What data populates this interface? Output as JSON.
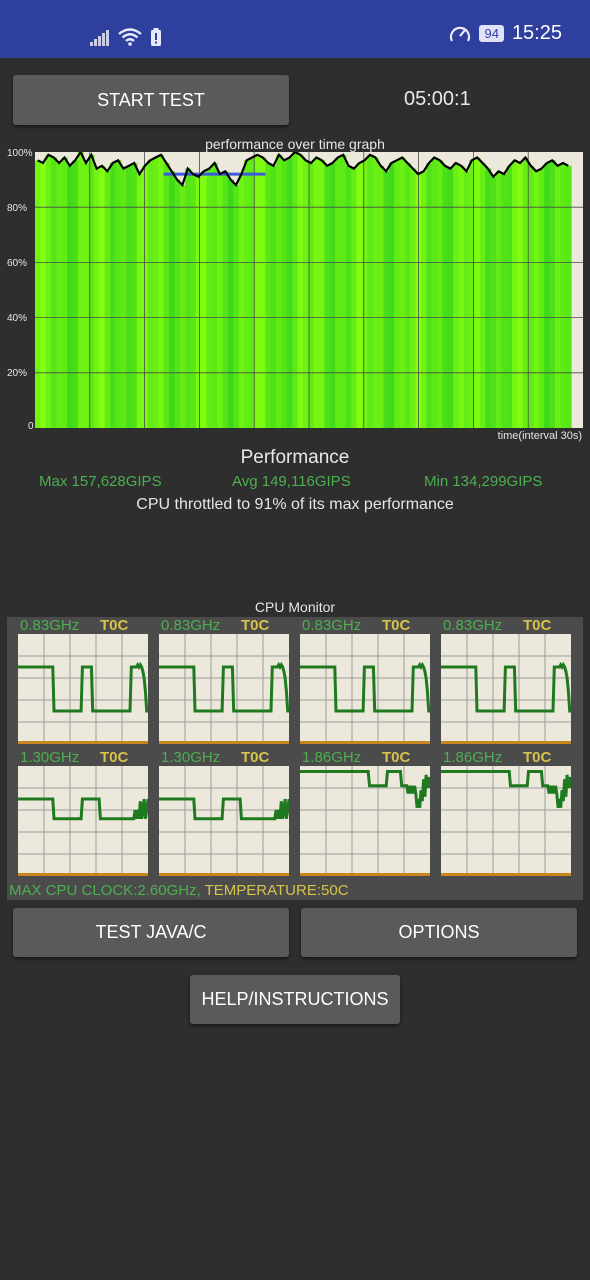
{
  "status_bar": {
    "time": "15:25",
    "battery": "94",
    "icons": [
      "signal-icon",
      "wifi-icon",
      "battery-saver-icon",
      "speedometer-icon"
    ]
  },
  "controls": {
    "start_label": "START TEST",
    "timer": "05:00:1",
    "java_label": "TEST JAVA/C",
    "options_label": "OPTIONS",
    "help_label": "HELP/INSTRUCTIONS"
  },
  "graph": {
    "title": "performance over time graph",
    "y_ticks": [
      "100%",
      "80%",
      "60%",
      "40%",
      "20%",
      "0"
    ],
    "x_label": "time(interval 30s)",
    "colors": {
      "bar_bright": "#7dff10",
      "bar_dark": "#3fd81a",
      "line": "#000000",
      "avg_line": "#3b5bdb",
      "bg": "#ece9dc"
    }
  },
  "chart_data": {
    "type": "line",
    "title": "performance over time graph",
    "xlabel": "time(interval 30s)",
    "ylabel": "",
    "ylim": [
      0,
      100
    ],
    "y_ticks": [
      "0",
      "20%",
      "40%",
      "60%",
      "80%",
      "100%"
    ],
    "grid": true,
    "series": [
      {
        "values": [
          97,
          96,
          99,
          98,
          96,
          98,
          95,
          97,
          100,
          96,
          99,
          94,
          95,
          93,
          96,
          97,
          94,
          95,
          96,
          92,
          95,
          97,
          98,
          99,
          96,
          93,
          90,
          88,
          94,
          92,
          91,
          93,
          94,
          96,
          92,
          93,
          90,
          88,
          92,
          97,
          98,
          99,
          98,
          96,
          95,
          99,
          97,
          98,
          100,
          99,
          97,
          96,
          98,
          97,
          95,
          96,
          98,
          99,
          95,
          94,
          96,
          97,
          99,
          98,
          95,
          93,
          96,
          97,
          98,
          96,
          94,
          92,
          93,
          96,
          98,
          97,
          95,
          94,
          96,
          95,
          93,
          97,
          98,
          96,
          94,
          91,
          93,
          92,
          95,
          97,
          96,
          98,
          95,
          93,
          94,
          96,
          97,
          95,
          96,
          95
        ]
      },
      {
        "x_range": [
          24,
          43
        ],
        "values": [
          92,
          92
        ]
      }
    ]
  },
  "performance": {
    "heading": "Performance",
    "max": "Max 157,628GIPS",
    "avg": "Avg 149,116GIPS",
    "min": "Min 134,299GIPS",
    "throttle": "CPU throttled to 91% of its max performance"
  },
  "cpu_monitor": {
    "title": "CPU Monitor",
    "cores": [
      {
        "freq": "0.83GHz",
        "temp": "T0C",
        "trace": [
          70,
          70,
          70,
          70,
          70,
          70,
          70,
          70,
          70,
          70,
          70,
          70,
          70,
          70,
          70,
          70,
          70,
          70,
          70,
          70,
          70,
          70,
          70,
          70,
          70,
          70,
          70,
          70,
          30,
          30,
          30,
          30,
          30,
          30,
          30,
          30,
          30,
          30,
          30,
          30,
          30,
          30,
          30,
          30,
          30,
          30,
          30,
          30,
          30,
          30,
          70,
          70,
          70,
          70,
          70,
          70,
          70,
          70,
          30,
          30,
          30,
          30,
          30,
          30,
          30,
          30,
          30,
          30,
          30,
          30,
          30,
          30,
          30,
          30,
          30,
          30,
          30,
          30,
          30,
          30,
          30,
          30,
          30,
          30,
          30,
          30,
          30,
          30,
          70,
          70,
          70,
          70,
          70,
          72,
          70,
          72,
          70,
          66,
          60,
          48,
          30,
          30
        ]
      },
      {
        "freq": "0.83GHz",
        "temp": "T0C",
        "trace": [
          70,
          70,
          70,
          70,
          70,
          70,
          70,
          70,
          70,
          70,
          70,
          70,
          70,
          70,
          70,
          70,
          70,
          70,
          70,
          70,
          70,
          70,
          70,
          70,
          70,
          70,
          70,
          70,
          30,
          30,
          30,
          30,
          30,
          30,
          30,
          30,
          30,
          30,
          30,
          30,
          30,
          30,
          30,
          30,
          30,
          30,
          30,
          30,
          30,
          30,
          70,
          70,
          70,
          70,
          70,
          70,
          70,
          70,
          30,
          30,
          30,
          30,
          30,
          30,
          30,
          30,
          30,
          30,
          30,
          30,
          30,
          30,
          30,
          30,
          30,
          30,
          30,
          30,
          30,
          30,
          30,
          30,
          30,
          30,
          30,
          30,
          30,
          30,
          70,
          70,
          70,
          70,
          70,
          72,
          70,
          72,
          70,
          66,
          60,
          48,
          30,
          30
        ]
      },
      {
        "freq": "0.83GHz",
        "temp": "T0C",
        "trace": [
          70,
          70,
          70,
          70,
          70,
          70,
          70,
          70,
          70,
          70,
          70,
          70,
          70,
          70,
          70,
          70,
          70,
          70,
          70,
          70,
          70,
          70,
          70,
          70,
          70,
          70,
          70,
          70,
          30,
          30,
          30,
          30,
          30,
          30,
          30,
          30,
          30,
          30,
          30,
          30,
          30,
          30,
          30,
          30,
          30,
          30,
          30,
          30,
          30,
          30,
          70,
          70,
          70,
          70,
          70,
          70,
          70,
          70,
          30,
          30,
          30,
          30,
          30,
          30,
          30,
          30,
          30,
          30,
          30,
          30,
          30,
          30,
          30,
          30,
          30,
          30,
          30,
          30,
          30,
          30,
          30,
          30,
          30,
          30,
          30,
          30,
          30,
          30,
          70,
          70,
          70,
          70,
          70,
          72,
          70,
          72,
          70,
          66,
          60,
          48,
          30,
          30
        ]
      },
      {
        "freq": "0.83GHz",
        "temp": "T0C",
        "trace": [
          70,
          70,
          70,
          70,
          70,
          70,
          70,
          70,
          70,
          70,
          70,
          70,
          70,
          70,
          70,
          70,
          70,
          70,
          70,
          70,
          70,
          70,
          70,
          70,
          70,
          70,
          70,
          70,
          30,
          30,
          30,
          30,
          30,
          30,
          30,
          30,
          30,
          30,
          30,
          30,
          30,
          30,
          30,
          30,
          30,
          30,
          30,
          30,
          30,
          30,
          70,
          70,
          70,
          70,
          70,
          70,
          70,
          70,
          30,
          30,
          30,
          30,
          30,
          30,
          30,
          30,
          30,
          30,
          30,
          30,
          30,
          30,
          30,
          30,
          30,
          30,
          30,
          30,
          30,
          30,
          30,
          30,
          30,
          30,
          30,
          30,
          30,
          30,
          70,
          70,
          70,
          70,
          70,
          72,
          70,
          72,
          70,
          66,
          60,
          48,
          30,
          30
        ]
      },
      {
        "freq": "1.30GHz",
        "temp": "T0C",
        "trace": [
          70,
          70,
          70,
          70,
          70,
          70,
          70,
          70,
          70,
          70,
          70,
          70,
          70,
          70,
          70,
          70,
          70,
          70,
          70,
          70,
          70,
          70,
          70,
          70,
          70,
          70,
          70,
          70,
          52,
          52,
          52,
          52,
          52,
          52,
          52,
          52,
          52,
          52,
          52,
          52,
          52,
          52,
          52,
          52,
          52,
          52,
          52,
          52,
          52,
          52,
          70,
          70,
          70,
          70,
          70,
          70,
          70,
          70,
          70,
          70,
          70,
          70,
          70,
          70,
          52,
          52,
          52,
          52,
          52,
          52,
          52,
          52,
          52,
          52,
          52,
          52,
          52,
          52,
          52,
          52,
          52,
          52,
          52,
          52,
          52,
          52,
          52,
          52,
          52,
          52,
          52,
          60,
          52,
          60,
          52,
          68,
          52,
          60,
          70,
          52,
          60,
          70
        ]
      },
      {
        "freq": "1.30GHz",
        "temp": "T0C",
        "trace": [
          70,
          70,
          70,
          70,
          70,
          70,
          70,
          70,
          70,
          70,
          70,
          70,
          70,
          70,
          70,
          70,
          70,
          70,
          70,
          70,
          70,
          70,
          70,
          70,
          70,
          70,
          70,
          70,
          52,
          52,
          52,
          52,
          52,
          52,
          52,
          52,
          52,
          52,
          52,
          52,
          52,
          52,
          52,
          52,
          52,
          52,
          52,
          52,
          52,
          52,
          70,
          70,
          70,
          70,
          70,
          70,
          70,
          70,
          70,
          70,
          70,
          70,
          70,
          70,
          52,
          52,
          52,
          52,
          52,
          52,
          52,
          52,
          52,
          52,
          52,
          52,
          52,
          52,
          52,
          52,
          52,
          52,
          52,
          52,
          52,
          52,
          52,
          52,
          52,
          52,
          52,
          60,
          52,
          60,
          52,
          68,
          52,
          60,
          70,
          52,
          60,
          70
        ]
      },
      {
        "freq": "1.86GHz",
        "temp": "T0C",
        "trace": [
          95,
          95,
          95,
          95,
          95,
          95,
          95,
          95,
          95,
          95,
          95,
          95,
          95,
          95,
          95,
          95,
          95,
          95,
          95,
          95,
          95,
          95,
          95,
          95,
          95,
          95,
          95,
          95,
          95,
          95,
          95,
          95,
          95,
          95,
          95,
          95,
          95,
          95,
          95,
          95,
          95,
          95,
          95,
          95,
          95,
          95,
          95,
          95,
          95,
          95,
          95,
          95,
          95,
          95,
          82,
          82,
          82,
          82,
          82,
          82,
          82,
          82,
          82,
          82,
          82,
          82,
          82,
          82,
          95,
          95,
          95,
          95,
          95,
          95,
          95,
          95,
          95,
          95,
          95,
          82,
          82,
          82,
          82,
          82,
          75,
          82,
          75,
          82,
          75,
          82,
          75,
          62,
          70,
          62,
          78,
          68,
          88,
          72,
          92,
          80,
          90,
          80
        ]
      },
      {
        "freq": "1.86GHz",
        "temp": "T0C",
        "trace": [
          95,
          95,
          95,
          95,
          95,
          95,
          95,
          95,
          95,
          95,
          95,
          95,
          95,
          95,
          95,
          95,
          95,
          95,
          95,
          95,
          95,
          95,
          95,
          95,
          95,
          95,
          95,
          95,
          95,
          95,
          95,
          95,
          95,
          95,
          95,
          95,
          95,
          95,
          95,
          95,
          95,
          95,
          95,
          95,
          95,
          95,
          95,
          95,
          95,
          95,
          95,
          95,
          95,
          95,
          82,
          82,
          82,
          82,
          82,
          82,
          82,
          82,
          82,
          82,
          82,
          82,
          82,
          82,
          95,
          95,
          95,
          95,
          95,
          95,
          95,
          95,
          95,
          95,
          95,
          82,
          82,
          82,
          82,
          82,
          75,
          82,
          75,
          82,
          75,
          82,
          75,
          62,
          70,
          62,
          78,
          68,
          88,
          72,
          92,
          80,
          90,
          80
        ]
      }
    ],
    "max_clock": "MAX CPU CLOCK:2.60GHz,",
    "temperature": "TEMPERATURE:50C"
  }
}
